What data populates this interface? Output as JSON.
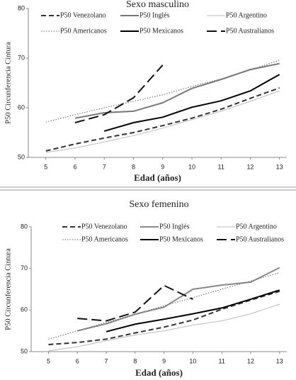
{
  "chart_data": [
    {
      "type": "line",
      "title": "Sexo masculino",
      "xlabel": "Edad (años)",
      "ylabel": "P50 Circunferencia Cintura",
      "x": [
        5,
        6,
        7,
        8,
        9,
        10,
        11,
        12,
        13
      ],
      "xlim": [
        4.4,
        13.25
      ],
      "xticks": [
        5,
        6,
        7,
        8,
        9,
        10,
        11,
        12,
        13
      ],
      "ylim": [
        50,
        80
      ],
      "yticks": [
        50,
        60,
        70,
        80
      ],
      "series": [
        {
          "name": "P50 Venezolano",
          "color": "#333333",
          "dash": "7,4",
          "width": 2,
          "values": [
            51.3,
            52.7,
            53.9,
            55,
            56.4,
            57.9,
            59.7,
            61.9,
            64
          ]
        },
        {
          "name": "P50 Inglés",
          "color": "#777777",
          "dash": "none",
          "width": 2,
          "values": [
            null,
            57.9,
            59,
            59.3,
            61,
            63.9,
            65.7,
            67.7,
            68.9
          ]
        },
        {
          "name": "P50 Argentino",
          "color": "#bbbbbb",
          "dash": "none",
          "width": 1,
          "values": [
            51,
            51.9,
            53.1,
            54.4,
            55.9,
            57.6,
            59.3,
            61.3,
            63.4
          ]
        },
        {
          "name": "P50 Americanos",
          "color": "#666666",
          "dash": "1.5,2",
          "width": 1,
          "values": [
            57.1,
            58.6,
            60,
            61.3,
            62.6,
            64.3,
            65.8,
            67.6,
            69.6
          ]
        },
        {
          "name": "P50 Mexicanos",
          "color": "#000000",
          "dash": "none",
          "width": 2,
          "values": [
            null,
            null,
            55.3,
            57,
            58.1,
            60.1,
            61.4,
            63.4,
            66.7
          ]
        },
        {
          "name": "P50 Australianos",
          "color": "#111111",
          "dash": "14,6",
          "width": 2,
          "values": [
            null,
            57,
            58.6,
            62,
            68.6,
            null,
            null,
            null,
            null
          ]
        }
      ]
    },
    {
      "type": "line",
      "title": "Sexo femenino",
      "xlabel": "Edad (años)",
      "ylabel": "P50 Circunferencia Cintura",
      "x": [
        5,
        6,
        7,
        8,
        9,
        10,
        11,
        12,
        13
      ],
      "xlim": [
        4.4,
        13.25
      ],
      "xticks": [
        5,
        6,
        7,
        8,
        9,
        10,
        11,
        12,
        13
      ],
      "ylim": [
        50,
        80
      ],
      "yticks": [
        50,
        60,
        70,
        80
      ],
      "series": [
        {
          "name": "P50 Venezolano",
          "color": "#333333",
          "dash": "7,4",
          "width": 2,
          "values": [
            51.7,
            52.2,
            53,
            54.5,
            55.9,
            57.6,
            60.2,
            62.4,
            64.5
          ]
        },
        {
          "name": "P50 Inglés",
          "color": "#888888",
          "dash": "none",
          "width": 2,
          "values": [
            null,
            55,
            56.7,
            59,
            60.7,
            65,
            66,
            66.7,
            70.2
          ]
        },
        {
          "name": "P50 Argentino",
          "color": "#bbbbbb",
          "dash": "none",
          "width": 1,
          "values": [
            50.2,
            51.2,
            52.6,
            54,
            55,
            56.4,
            57.4,
            59.1,
            61.4
          ]
        },
        {
          "name": "P50 Americanos",
          "color": "#666666",
          "dash": "1.5,2",
          "width": 1,
          "values": [
            53,
            55,
            57,
            59,
            61,
            63,
            65,
            67,
            69
          ]
        },
        {
          "name": "P50 Mexicanos",
          "color": "#000000",
          "dash": "none",
          "width": 2,
          "values": [
            null,
            null,
            54.8,
            56.6,
            57.8,
            59.1,
            60.5,
            62.6,
            64.8
          ]
        },
        {
          "name": "P50 Australianos",
          "color": "#111111",
          "dash": "14,6",
          "width": 2,
          "values": [
            null,
            58,
            57.4,
            59.5,
            65.9,
            62.6,
            null,
            null,
            null
          ]
        }
      ]
    }
  ]
}
